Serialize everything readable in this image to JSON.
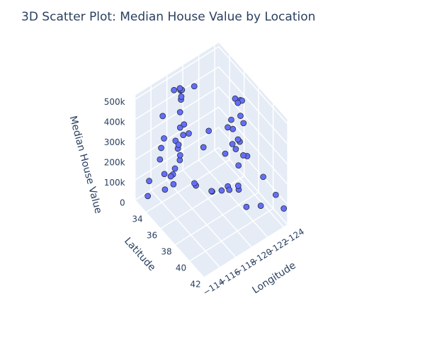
{
  "chart_data": {
    "type": "scatter3d",
    "title": "3D Scatter Plot: Median House Value by Location",
    "x_label": "Longitude",
    "y_label": "Latitude",
    "z_label": "Median House Value",
    "xlim": [
      -124.5,
      -114
    ],
    "ylim": [
      32.5,
      42
    ],
    "zlim": [
      0,
      520000
    ],
    "xticks": [
      {
        "value": -124,
        "label": "−124"
      },
      {
        "value": -122,
        "label": "−122"
      },
      {
        "value": -120,
        "label": "−120"
      },
      {
        "value": -118,
        "label": "−118"
      },
      {
        "value": -116,
        "label": "−116"
      },
      {
        "value": -114,
        "label": "−114"
      }
    ],
    "yticks": [
      34,
      36,
      38,
      40,
      42
    ],
    "zticks": [
      0,
      {
        "value": 100000,
        "label": "100k"
      },
      {
        "value": 200000,
        "label": "200k"
      },
      {
        "value": 300000,
        "label": "300k"
      },
      {
        "value": 400000,
        "label": "400k"
      },
      {
        "value": 500000,
        "label": "500k"
      }
    ],
    "color": "#636efa",
    "grid": true,
    "x": [
      -118.3,
      -118.4,
      -118.2,
      -118.5,
      -118.1,
      -117.9,
      -118.3,
      -118.25,
      -117.8,
      -118.45,
      -118.0,
      -117.3,
      -117.1,
      -117.2,
      -116.9,
      -117.0,
      -116.5,
      -115.5,
      -117.6,
      -118.6,
      -118.15,
      -118.35,
      -118.4,
      -117.2,
      -116.3,
      -114.6,
      -122.4,
      -122.27,
      -122.1,
      -121.9,
      -122.2,
      -122.45,
      -122.0,
      -121.8,
      -122.5,
      -122.3,
      -122.0,
      -122.6,
      -122.7,
      -121.5,
      -121.3,
      -121.0,
      -120.5,
      -119.8,
      -119.0,
      -120.7,
      -121.9,
      -122.0,
      -121.6,
      -122.4,
      -124.1,
      -123.8,
      -124.2,
      -122.3,
      -120.0,
      -119.7,
      -119.2,
      -120.4,
      -121.4,
      -118.9,
      -117.0,
      -119.5
    ],
    "y": [
      34.05,
      34.0,
      34.1,
      34.2,
      33.9,
      33.8,
      33.95,
      34.05,
      33.7,
      34.08,
      34.1,
      34.1,
      32.7,
      32.8,
      32.75,
      33.2,
      33.8,
      32.8,
      34.05,
      34.2,
      34.15,
      34.1,
      33.85,
      33.9,
      34.1,
      33.6,
      37.78,
      37.85,
      37.4,
      37.3,
      37.75,
      37.75,
      37.6,
      37.35,
      37.9,
      37.55,
      37.9,
      38.0,
      38.4,
      38.55,
      38.7,
      37.6,
      37.3,
      36.75,
      35.4,
      35.3,
      36.6,
      36.97,
      39.5,
      40.6,
      40.8,
      39.4,
      41.8,
      38.3,
      38.9,
      34.4,
      34.2,
      34.9,
      36.8,
      35.3,
      34.5,
      37.0
    ],
    "z": [
      500001,
      450000,
      320000,
      280000,
      210000,
      250000,
      150000,
      180000,
      500001,
      500001,
      240000,
      110000,
      190000,
      350000,
      140000,
      260000,
      120000,
      70000,
      130000,
      330000,
      400000,
      470000,
      500001,
      95000,
      60000,
      50000,
      500001,
      300000,
      500001,
      350000,
      180000,
      420000,
      260000,
      280000,
      500001,
      480000,
      320000,
      390000,
      240000,
      110000,
      140000,
      100000,
      80000,
      70000,
      65000,
      290000,
      330000,
      380000,
      60000,
      90000,
      110000,
      150000,
      80000,
      250000,
      160000,
      500001,
      270000,
      200000,
      220000,
      75000,
      85000,
      90000
    ]
  }
}
